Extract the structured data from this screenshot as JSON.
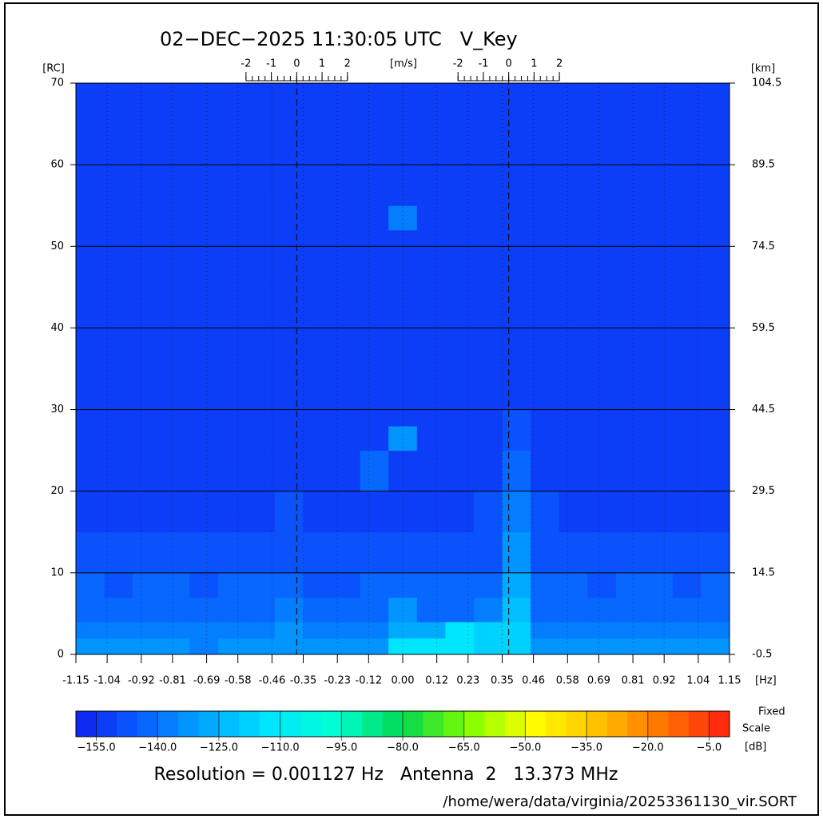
{
  "chart_data": {
    "type": "heatmap",
    "title": "02−DEC−2025 11:30:05 UTC   V_Key",
    "x_label": "[Hz]",
    "y_label": "[RC]",
    "y2_label": "[km]",
    "xlim": [
      -1.15,
      1.15
    ],
    "xticks": [
      -1.15,
      -1.04,
      -0.92,
      -0.81,
      -0.69,
      -0.58,
      -0.46,
      -0.35,
      -0.23,
      -0.12,
      {
        "value": 0,
        "label": "0.00"
      },
      0.12,
      0.23,
      0.35,
      0.46,
      0.58,
      0.69,
      0.81,
      0.92,
      1.04,
      1.15
    ],
    "ylim": [
      0,
      70
    ],
    "yticks": [
      0,
      10,
      20,
      30,
      40,
      50,
      60,
      70
    ],
    "y2lim": [
      -0.5,
      104.5
    ],
    "y2ticks": [
      -0.5,
      14.5,
      29.5,
      44.5,
      59.5,
      74.5,
      89.5,
      104.5
    ],
    "velocity_axis": {
      "label": "[m/s]",
      "centers": [
        -0.373,
        0.373
      ],
      "ticks": [
        -2,
        -1,
        0,
        1,
        2
      ],
      "hz_per_unit": 0.0892
    },
    "xbins": [
      -1.15,
      -1.05,
      -0.95,
      -0.85,
      -0.75,
      -0.65,
      -0.55,
      -0.45,
      -0.35,
      -0.25,
      -0.15,
      -0.05,
      0.05,
      0.15,
      0.25,
      0.35,
      0.45,
      0.55,
      0.65,
      0.75,
      0.85,
      0.95,
      1.05,
      1.15
    ],
    "ybins": [
      0,
      2,
      4,
      7,
      10,
      15,
      20,
      25,
      28,
      30,
      52,
      55,
      70
    ],
    "z": [
      [
        -135,
        -135,
        -134,
        -135,
        -136,
        -135,
        -134,
        -132,
        -135,
        -135,
        -134,
        -112,
        -115,
        -115,
        -116,
        -118,
        -134,
        -135,
        -134,
        -135,
        -135,
        -134,
        -135
      ],
      [
        -138,
        -139,
        -138,
        -138,
        -139,
        -138,
        -138,
        -135,
        -138,
        -139,
        -138,
        -128,
        -130,
        -115,
        -116,
        -120,
        -137,
        -138,
        -138,
        -139,
        -138,
        -138,
        -139
      ],
      [
        -142,
        -143,
        -142,
        -142,
        -143,
        -142,
        -142,
        -140,
        -142,
        -143,
        -142,
        -135,
        -142,
        -141,
        -138,
        -125,
        -141,
        -142,
        -142,
        -143,
        -142,
        -142,
        -143
      ],
      [
        -145,
        -146,
        -145,
        -145,
        -146,
        -145,
        -145,
        -143,
        -146,
        -146,
        -145,
        -142,
        -145,
        -145,
        -144,
        -128,
        -144,
        -145,
        -146,
        -145,
        -145,
        -146,
        -145
      ],
      [
        -148,
        -148,
        -148,
        -149,
        -148,
        -148,
        -148,
        -147,
        -149,
        -148,
        -148,
        -147,
        -148,
        -148,
        -147,
        -132,
        -147,
        -148,
        -148,
        -148,
        -149,
        -148,
        -148
      ],
      [
        -151,
        -151,
        -151,
        -151,
        -151,
        -151,
        -151,
        -150,
        -151,
        -151,
        -151,
        -151,
        -151,
        -151,
        -150,
        -138,
        -150,
        -151,
        -151,
        -151,
        -151,
        -151,
        -151
      ],
      [
        -152,
        -152,
        -152,
        -152,
        -152,
        -152,
        -152,
        -152,
        -152,
        -152,
        -145,
        -152,
        -152,
        -152,
        -152,
        -143,
        -152,
        -152,
        -152,
        -152,
        -152,
        -152,
        -152
      ],
      [
        -152,
        -152,
        -152,
        -152,
        -152,
        -152,
        -152,
        -152,
        -152,
        -152,
        -152,
        -135,
        -152,
        -152,
        -152,
        -147,
        -152,
        -152,
        -152,
        -152,
        -152,
        -152,
        -152
      ],
      [
        -152,
        -152,
        -152,
        -152,
        -152,
        -152,
        -152,
        -152,
        -152,
        -152,
        -152,
        -152,
        -152,
        -152,
        -152,
        -149,
        -152,
        -152,
        -152,
        -152,
        -152,
        -152,
        -152
      ],
      [
        -152,
        -152,
        -152,
        -152,
        -152,
        -152,
        -152,
        -152,
        -152,
        -152,
        -152,
        -152,
        -152,
        -152,
        -152,
        -152,
        -152,
        -152,
        -152,
        -152,
        -152,
        -152,
        -152
      ],
      [
        -152,
        -152,
        -152,
        -152,
        -152,
        -152,
        -152,
        -152,
        -152,
        -152,
        -152,
        -140,
        -152,
        -152,
        -152,
        -152,
        -152,
        -152,
        -152,
        -152,
        -152,
        -152,
        -152
      ],
      [
        -152,
        -152,
        -152,
        -152,
        -152,
        -152,
        -152,
        -152,
        -152,
        -152,
        -152,
        -152,
        -152,
        -152,
        -152,
        -152,
        -152,
        -152,
        -152,
        -152,
        -152,
        -152,
        -152
      ]
    ],
    "clim": [
      -160,
      0
    ],
    "color_step": 5,
    "colormap": [
      "#1020f0",
      "#0860ff",
      "#00a8ff",
      "#00e8ff",
      "#00ffd0",
      "#00d850",
      "#80ff00",
      "#ffff00",
      "#ffc000",
      "#ff7000",
      "#ff2010"
    ],
    "cticks": [
      {
        "value": -155,
        "label": "−155.0"
      },
      {
        "value": -140,
        "label": "−140.0"
      },
      {
        "value": -125,
        "label": "−125.0"
      },
      {
        "value": -110,
        "label": "−110.0"
      },
      {
        "value": -95,
        "label": "−95.0"
      },
      {
        "value": -80,
        "label": "−80.0"
      },
      {
        "value": -65,
        "label": "−65.0"
      },
      {
        "value": -50,
        "label": "−50.0"
      },
      {
        "value": -35,
        "label": "−35.0"
      },
      {
        "value": -20,
        "label": "−20.0"
      },
      {
        "value": -5,
        "label": "−5.0"
      }
    ],
    "colorbar_labels": [
      "Fixed",
      "Scale",
      "[dB]"
    ],
    "footer": "Resolution = 0.001127 Hz   Antenna  2   13.373 MHz",
    "file_path": "/home/wera/data/virginia/20253361130_vir.SORT"
  }
}
